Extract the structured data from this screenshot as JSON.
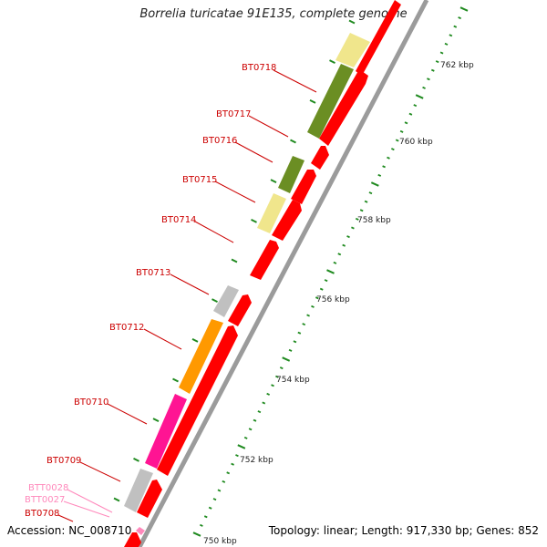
{
  "title": "Borrelia turicatae 91E135, complete genome",
  "accession": "Accession: NC_008710",
  "summary": "Topology: linear; Length: 917,330 bp; Genes: 852",
  "colors": {
    "backbone": "#9a9a9a",
    "tick": "#1f8a1f",
    "forward_gene": "#ff0000",
    "label_gene": "#cc0000",
    "label_pink": "#ff88bb"
  },
  "scale_labels": [
    "762 kbp",
    "760 kbp",
    "758 kbp",
    "756 kbp",
    "754 kbp",
    "752 kbp",
    "750 kbp"
  ],
  "gene_labels": [
    "BT0718",
    "BT0717",
    "BT0716",
    "BT0715",
    "BT0714",
    "BT0713",
    "BT0712",
    "BT0710",
    "BT0709",
    "BTT0028",
    "BTT0027",
    "BT0708"
  ]
}
